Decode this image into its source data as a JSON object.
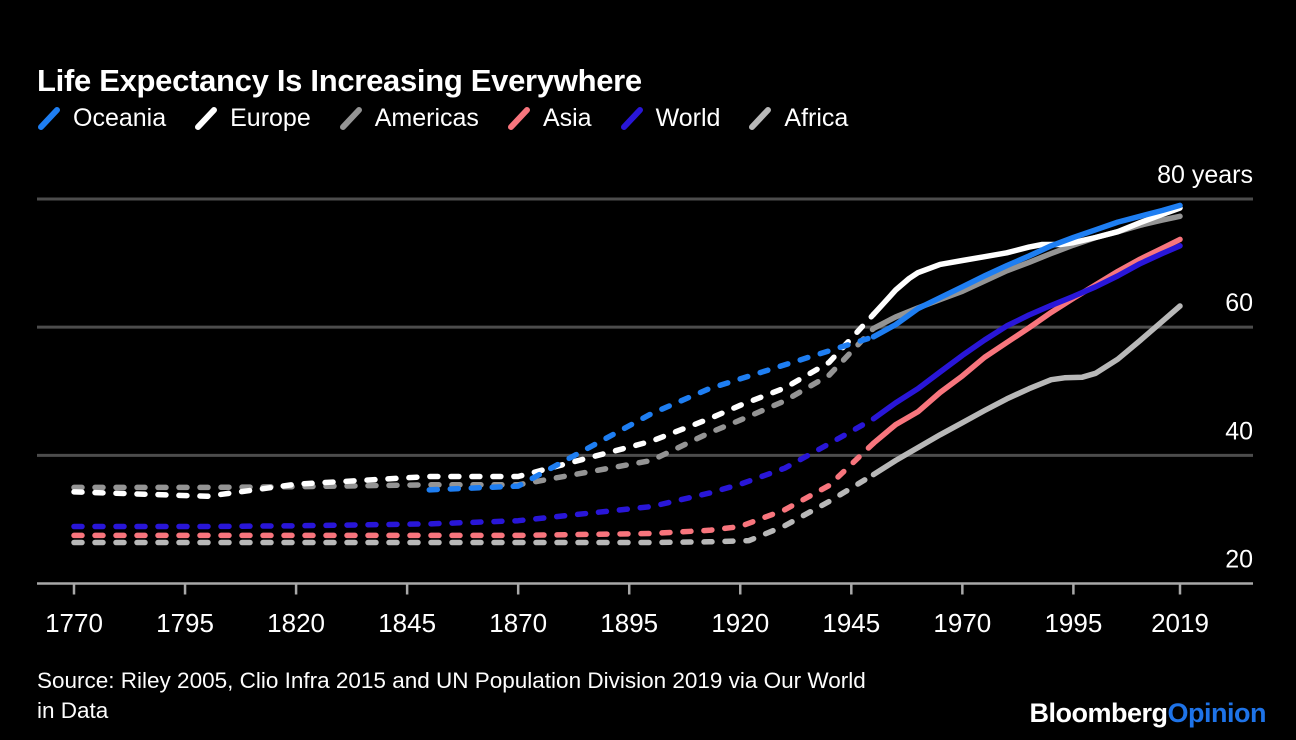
{
  "header": {
    "title": "Life Expectancy Is Increasing Everywhere"
  },
  "footer": {
    "source_line1": "Source: Riley 2005, Clio Infra 2015 and UN Population Division 2019 via Our World",
    "source_line2": "in Data",
    "logo_bloomberg": "Bloomberg",
    "logo_opinion": "Opinion",
    "logo_opinion_color": "#1e73e8"
  },
  "colors": {
    "background": "#000000",
    "gridline": "#4c4c4c",
    "axis": "#a8a8a8",
    "text": "#ffffff"
  },
  "chart_data": {
    "type": "line",
    "title": "Life Expectancy Is Increasing Everywhere",
    "xlabel": "",
    "ylabel": "years",
    "x_axis": {
      "range": [
        1770,
        2019
      ],
      "ticks": [
        1770,
        1795,
        1820,
        1845,
        1870,
        1895,
        1920,
        1945,
        1970,
        1995,
        2019
      ]
    },
    "y_axis": {
      "range": [
        20,
        80
      ],
      "baseline": 20,
      "gridlines": [
        40,
        60,
        80
      ],
      "tick_labels": {
        "20": "20",
        "40": "40",
        "60": "60",
        "80": "80 years"
      }
    },
    "style_note": "lines dashed before 1950 (sparse historical estimates), solid 1950 onward",
    "draw_order": [
      "Africa",
      "Asia",
      "World",
      "Americas",
      "Europe",
      "Oceania"
    ],
    "series": [
      {
        "name": "Oceania",
        "color": "#1e7ef2",
        "dash_until": 1950,
        "points": [
          [
            1850,
            34.6
          ],
          [
            1870,
            35.2
          ],
          [
            1900,
            46.5
          ],
          [
            1913,
            50.4
          ],
          [
            1950,
            58.5
          ],
          [
            1955,
            60.4
          ],
          [
            1960,
            62.9
          ],
          [
            1965,
            64.6
          ],
          [
            1970,
            66.3
          ],
          [
            1975,
            68.0
          ],
          [
            1980,
            69.6
          ],
          [
            1985,
            71.1
          ],
          [
            1990,
            72.7
          ],
          [
            1995,
            74.0
          ],
          [
            2000,
            75.2
          ],
          [
            2005,
            76.4
          ],
          [
            2010,
            77.3
          ],
          [
            2015,
            78.2
          ],
          [
            2019,
            79.0
          ]
        ]
      },
      {
        "name": "Europe",
        "color": "#ffffff",
        "dash_until": 1950,
        "points": [
          [
            1770,
            34.3
          ],
          [
            1800,
            33.6
          ],
          [
            1820,
            35.5
          ],
          [
            1850,
            36.7
          ],
          [
            1870,
            36.7
          ],
          [
            1900,
            42.2
          ],
          [
            1913,
            45.7
          ],
          [
            1920,
            47.8
          ],
          [
            1930,
            50.5
          ],
          [
            1940,
            54.5
          ],
          [
            1950,
            62.0
          ],
          [
            1952,
            63.5
          ],
          [
            1955,
            65.8
          ],
          [
            1958,
            67.6
          ],
          [
            1960,
            68.5
          ],
          [
            1965,
            69.8
          ],
          [
            1970,
            70.4
          ],
          [
            1975,
            71.0
          ],
          [
            1980,
            71.6
          ],
          [
            1985,
            72.5
          ],
          [
            1988,
            72.9
          ],
          [
            1992,
            72.9
          ],
          [
            1995,
            73.2
          ],
          [
            2000,
            74.0
          ],
          [
            2005,
            74.9
          ],
          [
            2010,
            76.3
          ],
          [
            2015,
            77.6
          ],
          [
            2019,
            78.6
          ]
        ]
      },
      {
        "name": "Americas",
        "color": "#949494",
        "dash_until": 1950,
        "points": [
          [
            1770,
            35.0
          ],
          [
            1800,
            35.0
          ],
          [
            1820,
            35.1
          ],
          [
            1850,
            35.4
          ],
          [
            1870,
            35.4
          ],
          [
            1900,
            39.2
          ],
          [
            1913,
            43.5
          ],
          [
            1920,
            45.5
          ],
          [
            1930,
            48.5
          ],
          [
            1940,
            52.5
          ],
          [
            1950,
            59.8
          ],
          [
            1955,
            61.6
          ],
          [
            1960,
            63.0
          ],
          [
            1965,
            64.3
          ],
          [
            1970,
            65.6
          ],
          [
            1975,
            67.2
          ],
          [
            1980,
            68.8
          ],
          [
            1985,
            70.1
          ],
          [
            1990,
            71.5
          ],
          [
            1995,
            72.8
          ],
          [
            2000,
            74.0
          ],
          [
            2005,
            74.9
          ],
          [
            2010,
            75.9
          ],
          [
            2015,
            76.7
          ],
          [
            2019,
            77.3
          ]
        ]
      },
      {
        "name": "Asia",
        "color": "#f8757d",
        "dash_until": 1950,
        "points": [
          [
            1770,
            27.5
          ],
          [
            1800,
            27.5
          ],
          [
            1820,
            27.5
          ],
          [
            1850,
            27.5
          ],
          [
            1870,
            27.5
          ],
          [
            1900,
            27.8
          ],
          [
            1913,
            28.3
          ],
          [
            1920,
            28.9
          ],
          [
            1930,
            31.5
          ],
          [
            1940,
            35.3
          ],
          [
            1950,
            41.9
          ],
          [
            1955,
            44.8
          ],
          [
            1960,
            46.8
          ],
          [
            1965,
            49.8
          ],
          [
            1970,
            52.4
          ],
          [
            1975,
            55.3
          ],
          [
            1980,
            57.6
          ],
          [
            1985,
            59.9
          ],
          [
            1990,
            62.3
          ],
          [
            1995,
            64.5
          ],
          [
            2000,
            66.6
          ],
          [
            2005,
            68.7
          ],
          [
            2010,
            70.6
          ],
          [
            2015,
            72.3
          ],
          [
            2019,
            73.7
          ]
        ]
      },
      {
        "name": "World",
        "color": "#2916d8",
        "dash_until": 1950,
        "points": [
          [
            1770,
            28.9
          ],
          [
            1800,
            28.9
          ],
          [
            1820,
            29.0
          ],
          [
            1850,
            29.3
          ],
          [
            1870,
            29.8
          ],
          [
            1900,
            32.0
          ],
          [
            1913,
            34.1
          ],
          [
            1920,
            35.5
          ],
          [
            1930,
            38.0
          ],
          [
            1940,
            41.8
          ],
          [
            1950,
            45.7
          ],
          [
            1955,
            48.2
          ],
          [
            1960,
            50.4
          ],
          [
            1965,
            53.0
          ],
          [
            1970,
            55.6
          ],
          [
            1975,
            58.0
          ],
          [
            1980,
            60.2
          ],
          [
            1985,
            61.9
          ],
          [
            1990,
            63.4
          ],
          [
            1995,
            64.8
          ],
          [
            2000,
            66.3
          ],
          [
            2005,
            68.0
          ],
          [
            2010,
            69.9
          ],
          [
            2015,
            71.5
          ],
          [
            2019,
            72.7
          ]
        ]
      },
      {
        "name": "Africa",
        "color": "#b8b8b8",
        "dash_until": 1950,
        "points": [
          [
            1770,
            26.4
          ],
          [
            1800,
            26.4
          ],
          [
            1820,
            26.4
          ],
          [
            1850,
            26.4
          ],
          [
            1870,
            26.4
          ],
          [
            1900,
            26.4
          ],
          [
            1913,
            26.5
          ],
          [
            1922,
            26.7
          ],
          [
            1930,
            29.0
          ],
          [
            1940,
            32.8
          ],
          [
            1950,
            37.0
          ],
          [
            1955,
            39.2
          ],
          [
            1960,
            41.2
          ],
          [
            1965,
            43.2
          ],
          [
            1970,
            45.1
          ],
          [
            1975,
            47.0
          ],
          [
            1980,
            48.8
          ],
          [
            1985,
            50.4
          ],
          [
            1990,
            51.8
          ],
          [
            1993,
            52.1
          ],
          [
            1997,
            52.2
          ],
          [
            2000,
            52.8
          ],
          [
            2005,
            55.0
          ],
          [
            2010,
            57.9
          ],
          [
            2015,
            60.9
          ],
          [
            2019,
            63.3
          ]
        ]
      }
    ]
  }
}
